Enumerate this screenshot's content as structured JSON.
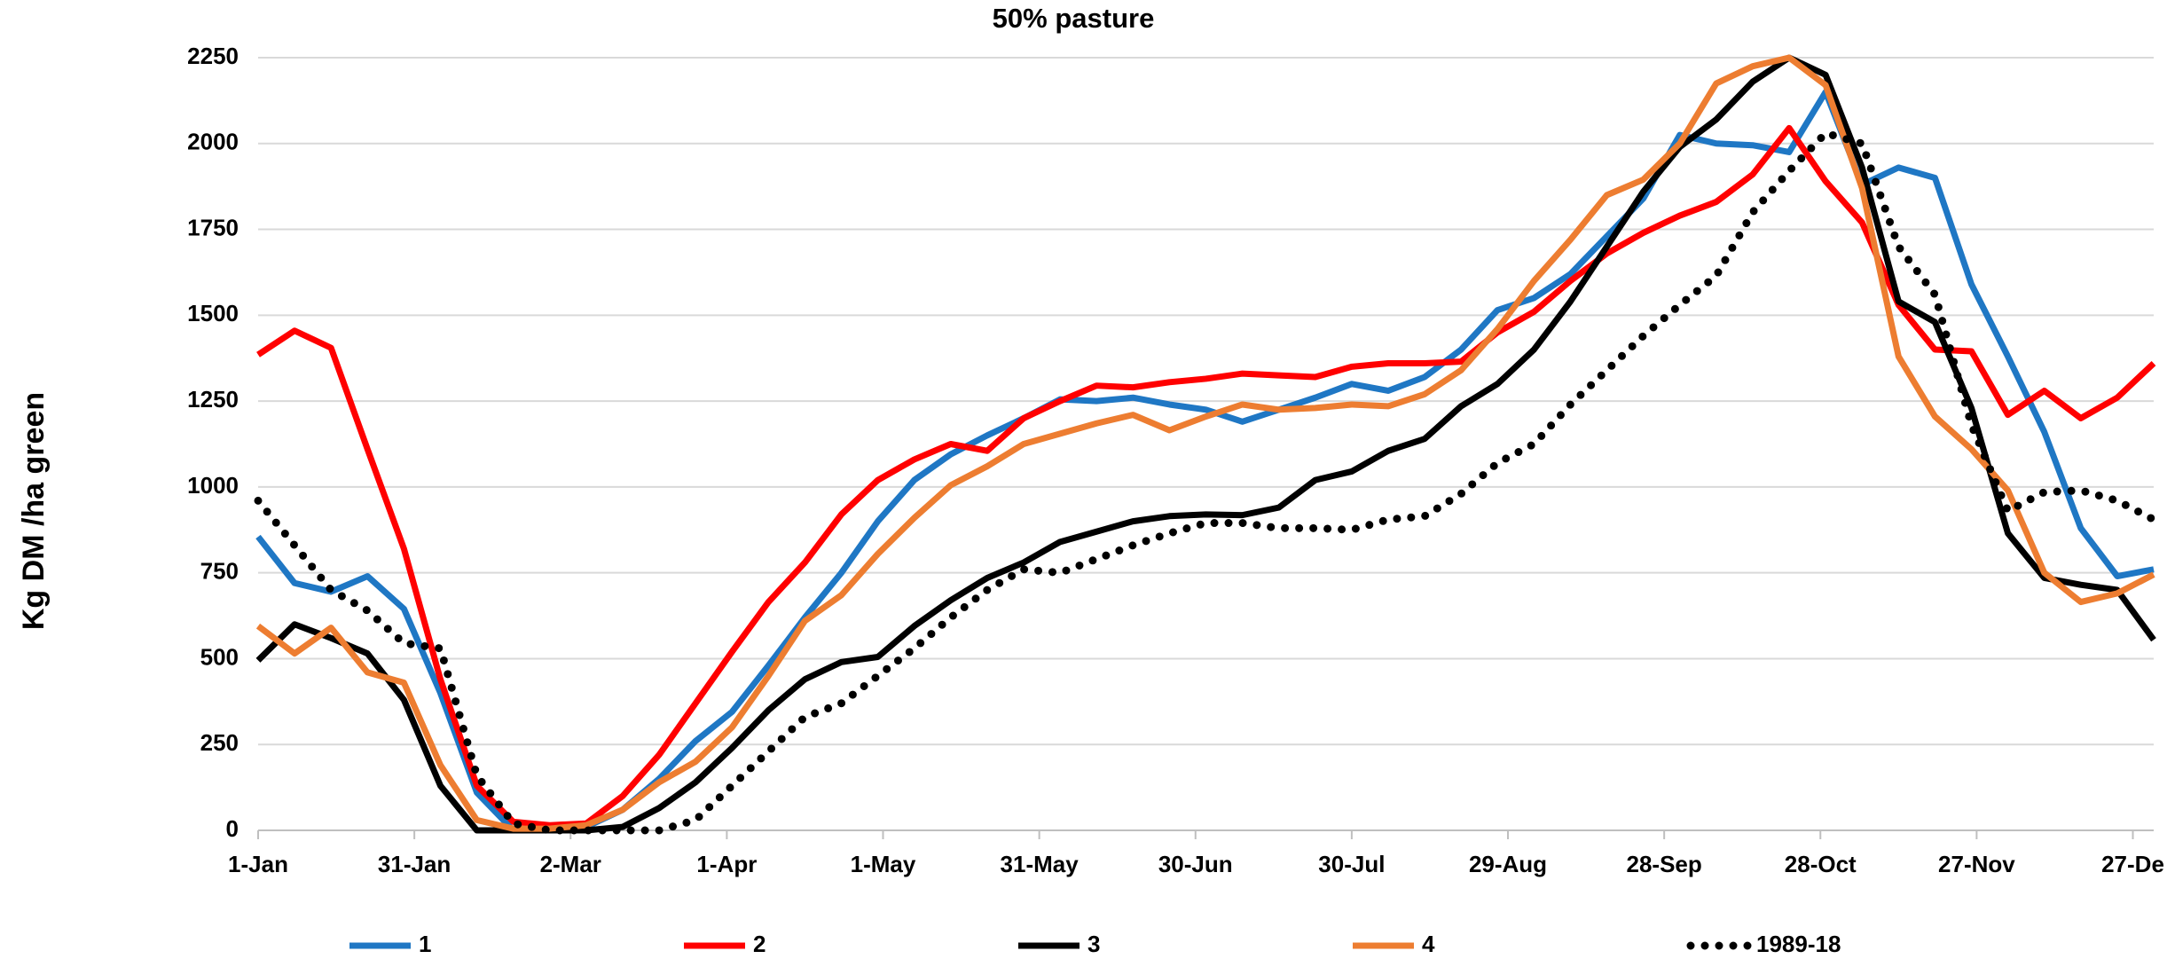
{
  "chart_data": {
    "type": "line",
    "title": "50% pasture",
    "y_label": "Kg DM /ha green",
    "x": [
      0,
      7,
      14,
      21,
      28,
      35,
      42,
      49,
      56,
      63,
      70,
      77,
      84,
      91,
      98,
      105,
      112,
      119,
      126,
      133,
      140,
      147,
      154,
      161,
      168,
      175,
      182,
      189,
      196,
      203,
      210,
      217,
      224,
      231,
      238,
      245,
      252,
      259,
      266,
      273,
      280,
      287,
      294,
      301,
      308,
      315,
      322,
      329,
      336,
      343,
      350,
      357,
      364
    ],
    "xlim": [
      0,
      364
    ],
    "xticks": [
      {
        "value": 0,
        "label": "1-Jan"
      },
      {
        "value": 30,
        "label": "31-Jan"
      },
      {
        "value": 60,
        "label": "2-Mar"
      },
      {
        "value": 90,
        "label": "1-Apr"
      },
      {
        "value": 120,
        "label": "1-May"
      },
      {
        "value": 150,
        "label": "31-May"
      },
      {
        "value": 180,
        "label": "30-Jun"
      },
      {
        "value": 210,
        "label": "30-Jul"
      },
      {
        "value": 240,
        "label": "29-Aug"
      },
      {
        "value": 270,
        "label": "28-Sep"
      },
      {
        "value": 300,
        "label": "28-Oct"
      },
      {
        "value": 330,
        "label": "27-Nov"
      },
      {
        "value": 360,
        "label": "27-De"
      }
    ],
    "ylim": [
      0,
      2250
    ],
    "yticks": [
      0,
      250,
      500,
      750,
      1000,
      1250,
      1500,
      1750,
      2000,
      2250
    ],
    "grid": true,
    "series": [
      {
        "name": "1",
        "color": "#1f77c4",
        "values": [
          855,
          720,
          695,
          740,
          645,
          400,
          110,
          0,
          0,
          10,
          60,
          150,
          260,
          345,
          480,
          620,
          750,
          900,
          1020,
          1095,
          1150,
          1200,
          1255,
          1250,
          1260,
          1240,
          1225,
          1190,
          1225,
          1260,
          1300,
          1280,
          1320,
          1400,
          1515,
          1550,
          1620,
          1730,
          1840,
          2025,
          2000,
          1995,
          1975,
          2150,
          1880,
          1930,
          1900,
          1590,
          1380,
          1160,
          880,
          740,
          760
        ]
      },
      {
        "name": "2",
        "color": "#ff0000",
        "values": [
          1385,
          1455,
          1405,
          1110,
          820,
          440,
          130,
          25,
          15,
          20,
          100,
          220,
          370,
          520,
          665,
          780,
          920,
          1020,
          1080,
          1125,
          1105,
          1200,
          1250,
          1295,
          1290,
          1305,
          1315,
          1330,
          1325,
          1320,
          1350,
          1360,
          1360,
          1365,
          1450,
          1510,
          1600,
          1680,
          1740,
          1790,
          1830,
          1910,
          2045,
          1890,
          1770,
          1530,
          1400,
          1395,
          1210,
          1280,
          1200,
          1260,
          1360
        ]
      },
      {
        "name": "3",
        "color": "#000000",
        "values": [
          495,
          600,
          560,
          515,
          380,
          130,
          0,
          0,
          0,
          0,
          10,
          65,
          140,
          240,
          350,
          440,
          490,
          505,
          595,
          670,
          735,
          780,
          840,
          870,
          900,
          915,
          920,
          918,
          940,
          1020,
          1045,
          1105,
          1140,
          1235,
          1300,
          1400,
          1540,
          1700,
          1860,
          1990,
          2070,
          2180,
          2250,
          2200,
          1930,
          1540,
          1480,
          1230,
          865,
          735,
          715,
          700,
          555
        ]
      },
      {
        "name": "4",
        "color": "#ed7d31",
        "values": [
          595,
          515,
          590,
          460,
          430,
          190,
          30,
          5,
          5,
          15,
          60,
          140,
          200,
          300,
          450,
          610,
          685,
          805,
          910,
          1005,
          1060,
          1125,
          1155,
          1185,
          1210,
          1165,
          1205,
          1240,
          1225,
          1230,
          1240,
          1235,
          1270,
          1340,
          1460,
          1600,
          1720,
          1850,
          1895,
          2000,
          2175,
          2225,
          2250,
          2170,
          1870,
          1380,
          1205,
          1110,
          990,
          750,
          665,
          690,
          745
        ]
      },
      {
        "name": "1989-18",
        "color": "#000000",
        "dotted": true,
        "values": [
          960,
          830,
          700,
          640,
          545,
          530,
          160,
          20,
          0,
          0,
          0,
          0,
          30,
          130,
          230,
          330,
          370,
          450,
          530,
          620,
          700,
          760,
          750,
          790,
          830,
          865,
          895,
          895,
          880,
          880,
          875,
          905,
          915,
          980,
          1070,
          1125,
          1240,
          1340,
          1440,
          1530,
          1615,
          1800,
          1920,
          2030,
          2000,
          1700,
          1560,
          1180,
          930,
          985,
          990,
          960,
          905
        ]
      }
    ]
  }
}
